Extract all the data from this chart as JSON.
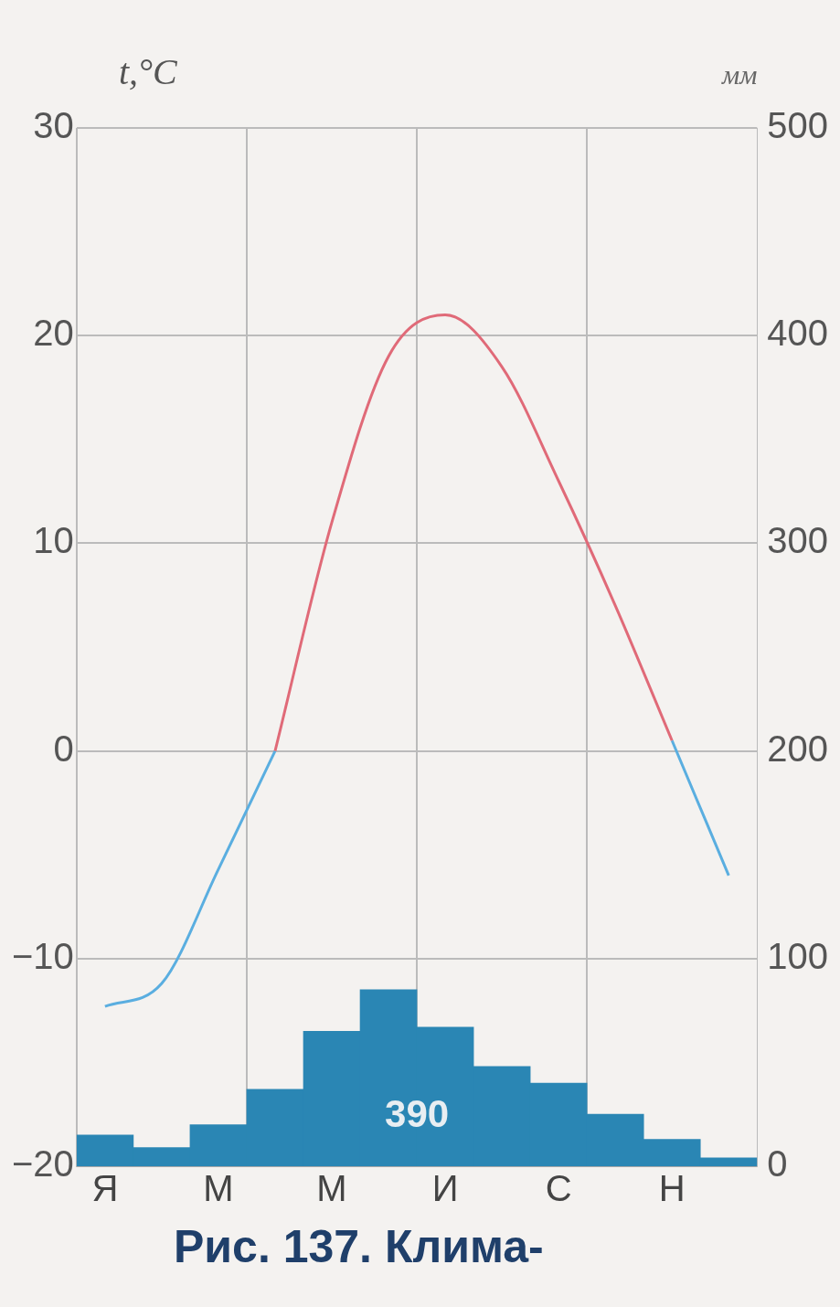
{
  "chart_data": {
    "type": "bar",
    "categories": [
      "Я",
      null,
      "М",
      null,
      "М",
      null,
      "И",
      null,
      "С",
      null,
      "Н",
      null
    ],
    "ylabel": "t,°C",
    "y2label": "мм",
    "ylim": [
      -20,
      30
    ],
    "yticks": [
      -20,
      -10,
      0,
      10,
      20,
      30
    ],
    "y2lim": [
      0,
      500
    ],
    "y2ticks": [
      0,
      100,
      200,
      300,
      400,
      500
    ],
    "grid": true,
    "series": [
      {
        "axis": "y2",
        "color": "#2a86b4",
        "values": [
          15,
          9,
          20,
          37,
          65,
          85,
          67,
          48,
          40,
          25,
          13,
          4
        ]
      },
      {
        "type": "line",
        "axis": "y",
        "color": "#e06a78",
        "values": [
          null,
          null,
          null,
          0,
          11,
          19,
          21,
          18.5,
          13,
          7,
          0.5,
          null
        ]
      },
      {
        "type": "line",
        "axis": "y",
        "color": "#5aaee0",
        "values": [
          -12.3,
          -11.2,
          -5.7,
          0,
          null,
          null,
          null,
          null,
          null,
          null,
          0.5,
          -6
        ]
      }
    ],
    "annotations": [
      "390",
      "Рис. 137. Клима-"
    ]
  }
}
